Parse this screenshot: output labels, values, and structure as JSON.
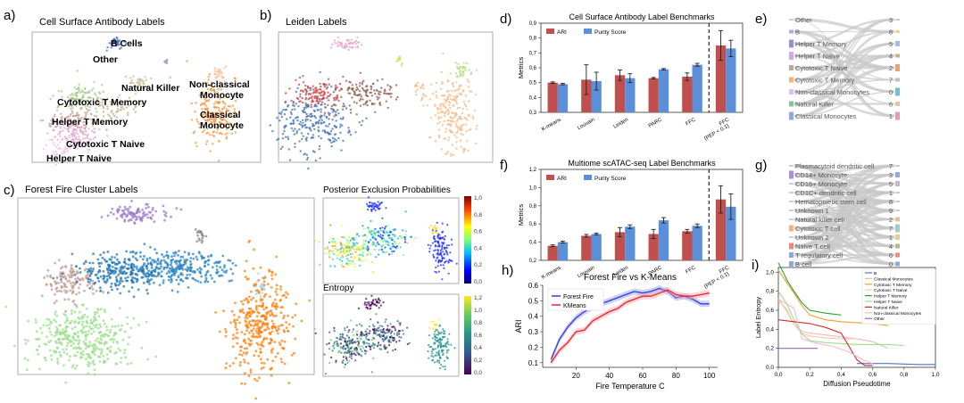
{
  "panels": {
    "a": {
      "letter": "a)",
      "title": "Cell Surface Antibody Labels",
      "labels": [
        "B Cells",
        "Other",
        "Natural Killer",
        "Non-classical\nMonocyte",
        "Cytotoxic T Memory",
        "Classical\nMonocyte",
        "Helper T Memory",
        "Cytotoxic T Naive",
        "Helper T Naive"
      ]
    },
    "b": {
      "letter": "b)",
      "title": "Leiden Labels"
    },
    "c": {
      "letter": "c)",
      "title": "Forest Fire Cluster Labels",
      "pep_title": "Posterior Exclusion Probabilities",
      "entropy_title": "Entropy",
      "pep_ticks": [
        "1,0",
        "0,8",
        "0,6",
        "0,4",
        "0,2",
        "0,0"
      ],
      "entropy_ticks": [
        "1,2",
        "1,0",
        "0,8",
        "0,6",
        "0,4",
        "0,2",
        "0,0"
      ]
    },
    "d": {
      "letter": "d)"
    },
    "e": {
      "letter": "e)",
      "left": [
        "Other",
        "B",
        "Helper T Memory",
        "Helper T Naive",
        "Cytotoxic T Naive",
        "Cytotoxic T Memory",
        "Non-classical Monocytes",
        "Natural Killer",
        "Classical Monocytes"
      ],
      "right": [
        "3",
        "8",
        "5",
        "4",
        "2",
        "7",
        "0",
        "6",
        "1"
      ]
    },
    "f": {
      "letter": "f)"
    },
    "g": {
      "letter": "g)",
      "left": [
        "Plasmacytoid dendritic cell",
        "CD14+ Monocyte",
        "CD16+ Monocyte",
        "CD1C+ dendritic cell",
        "Hematopoietic stem cell",
        "Unknown 1",
        "Natural killer cell",
        "Cytotoxic T cell",
        "Unknown 2",
        "Naive T cell",
        "T regulatory cell",
        "B cell"
      ],
      "right": [
        "7",
        "3",
        "5",
        "1",
        "8",
        "9",
        "2",
        "7",
        "1",
        "4",
        "6",
        "0"
      ]
    },
    "h": {
      "letter": "h)"
    },
    "i": {
      "letter": "i)"
    }
  },
  "chart_data": [
    {
      "id": "d",
      "type": "bar",
      "title": "Cell Surface Antibody Label Benchmarks",
      "ylabel": "Metrics",
      "ylim": [
        0.3,
        0.9
      ],
      "yticks": [
        "0,3",
        "0,4",
        "0,5",
        "0,6",
        "0,7",
        "0,8",
        "0,9"
      ],
      "categories": [
        "K-means",
        "Louvain",
        "Leiden",
        "PARC",
        "FFC",
        "FFC\n(PEP < 0.1)"
      ],
      "series": [
        {
          "name": "ARI",
          "color": "#c0504d",
          "values": [
            0.5,
            0.52,
            0.55,
            0.53,
            0.54,
            0.75
          ],
          "errors": [
            0.005,
            0.1,
            0.035,
            0.005,
            0.025,
            0.1
          ]
        },
        {
          "name": "Purity Score",
          "color": "#5b8fd9",
          "values": [
            0.49,
            0.51,
            0.53,
            0.59,
            0.62,
            0.73
          ],
          "errors": [
            0.005,
            0.06,
            0.03,
            0.005,
            0.01,
            0.055
          ]
        }
      ]
    },
    {
      "id": "f",
      "type": "bar",
      "title": "Multiome scATAC-seq Label Benchmarks",
      "ylabel": "Metrics",
      "ylim": [
        0.2,
        1.2
      ],
      "yticks": [
        "0,2",
        "0,4",
        "0,6",
        "0,8",
        "1,0",
        "1,2"
      ],
      "categories": [
        "K-means",
        "Louvain",
        "Leiden",
        "PARC",
        "FFC",
        "FFC\n(PEP < 0.1)"
      ],
      "series": [
        {
          "name": "ARI",
          "color": "#c0504d",
          "values": [
            0.36,
            0.47,
            0.51,
            0.49,
            0.52,
            0.87
          ],
          "errors": [
            0.01,
            0.015,
            0.05,
            0.05,
            0.02,
            0.15
          ]
        },
        {
          "name": "Purity Score",
          "color": "#5b8fd9",
          "values": [
            0.4,
            0.49,
            0.57,
            0.64,
            0.58,
            0.79
          ],
          "errors": [
            0.01,
            0.01,
            0.02,
            0.03,
            0.02,
            0.14
          ]
        }
      ]
    },
    {
      "id": "h",
      "type": "line",
      "title": "Forest Fire vs K-Means",
      "xlabel": "Fire Temperature C",
      "ylabel": "ARI",
      "xlim": [
        0,
        105
      ],
      "ylim": [
        0.07,
        0.6
      ],
      "xticks": [
        20,
        40,
        60,
        80,
        100
      ],
      "yticks": [
        "0.1",
        "0.2",
        "0.3",
        "0.4",
        "0.5",
        "0.6"
      ],
      "legend": "top-left",
      "series": [
        {
          "name": "Forest Fire",
          "color": "#2d3ed8",
          "x": [
            5,
            10,
            15,
            20,
            25,
            30,
            35,
            40,
            45,
            50,
            55,
            60,
            65,
            70,
            75,
            80,
            85,
            90,
            95,
            100
          ],
          "y": [
            0.12,
            0.25,
            0.33,
            0.39,
            0.43,
            0.46,
            0.48,
            0.5,
            0.52,
            0.54,
            0.56,
            0.55,
            0.56,
            0.58,
            0.56,
            0.52,
            0.53,
            0.51,
            0.48,
            0.48
          ]
        },
        {
          "name": "KMeans",
          "color": "#e8222f",
          "x": [
            5,
            10,
            15,
            20,
            25,
            30,
            35,
            40,
            45,
            50,
            55,
            60,
            65,
            70,
            75,
            80,
            85,
            90,
            95,
            100
          ],
          "y": [
            0.1,
            0.18,
            0.23,
            0.3,
            0.31,
            0.37,
            0.4,
            0.43,
            0.45,
            0.49,
            0.51,
            0.53,
            0.53,
            0.55,
            0.57,
            0.54,
            0.53,
            0.53,
            0.54,
            0.55
          ]
        }
      ]
    },
    {
      "id": "i",
      "type": "line",
      "xlabel": "Diffusion Pseudotime",
      "ylabel": "Label Entropy",
      "xlim": [
        0,
        1.0
      ],
      "ylim": [
        0,
        1.05
      ],
      "xticks": [
        "0,0",
        "0,2",
        "0,4",
        "0,6",
        "0,8",
        "1,0"
      ],
      "yticks": [
        "0,0",
        "0,2",
        "0,4",
        "0,6",
        "0,8",
        "1,0"
      ],
      "legend": "top-right",
      "series": [
        {
          "name": "B",
          "color": "#4a78c8",
          "x": [
            0.5,
            0.6,
            0.7,
            0.8,
            0.9,
            1.0
          ],
          "y": [
            0.04,
            0.04,
            0.04,
            0.035,
            0.03,
            0.03
          ]
        },
        {
          "name": "Classical Monocytes",
          "color": "#f0b9b0",
          "x": [
            0.0,
            0.05,
            0.1,
            0.15,
            0.2,
            0.3,
            0.4,
            0.5,
            0.6,
            0.7
          ],
          "y": [
            0.72,
            0.6,
            0.45,
            0.38,
            0.36,
            0.34,
            0.32,
            0.3,
            0.27,
            0.2
          ]
        },
        {
          "name": "Cytotoxic T Memory",
          "color": "#f0a030",
          "x": [
            0.0,
            0.03,
            0.07,
            0.1,
            0.15,
            0.2,
            0.3,
            0.4,
            0.5,
            0.6,
            0.7
          ],
          "y": [
            1.02,
            0.95,
            0.85,
            0.78,
            0.65,
            0.55,
            0.5,
            0.48,
            0.47,
            0.46,
            0.44
          ]
        },
        {
          "name": "Cytotoxic T Naive",
          "color": "#f5c9a0",
          "x": [
            0.0,
            0.05,
            0.1,
            0.15,
            0.2,
            0.3,
            0.4,
            0.5
          ],
          "y": [
            0.7,
            0.62,
            0.45,
            0.36,
            0.33,
            0.31,
            0.3,
            0.3
          ]
        },
        {
          "name": "Helper T Memory",
          "color": "#2ca02c",
          "x": [
            0.0,
            0.03,
            0.06,
            0.1,
            0.15,
            0.2,
            0.3,
            0.4
          ],
          "y": [
            1.1,
            1.0,
            0.9,
            0.8,
            0.68,
            0.6,
            0.57,
            0.55
          ]
        },
        {
          "name": "Helper T Naive",
          "color": "#98df8a",
          "x": [
            0.0,
            0.05,
            0.1,
            0.15,
            0.2,
            0.3,
            0.4,
            0.5,
            0.6,
            0.7,
            0.8
          ],
          "y": [
            0.8,
            0.68,
            0.5,
            0.35,
            0.28,
            0.26,
            0.25,
            0.24,
            0.24,
            0.24,
            0.23
          ]
        },
        {
          "name": "Natural Killer",
          "color": "#d62728",
          "x": [
            0.0,
            0.1,
            0.2,
            0.3,
            0.4,
            0.45,
            0.5,
            0.55,
            0.6
          ],
          "y": [
            0.5,
            0.48,
            0.46,
            0.42,
            0.36,
            0.22,
            0.08,
            0.02,
            0.02
          ]
        },
        {
          "name": "Non-classical Monocytes",
          "color": "#f7b6d2",
          "x": [
            0.0,
            0.1,
            0.15,
            0.25,
            0.35,
            0.45,
            0.55,
            0.6
          ],
          "y": [
            0.72,
            0.62,
            0.3,
            0.25,
            0.22,
            0.16,
            0.07,
            0.04
          ]
        },
        {
          "name": "Other",
          "color": "#9467bd",
          "x": [
            0.0,
            0.1,
            0.2,
            0.25
          ],
          "y": [
            0.2,
            0.2,
            0.2,
            0.2
          ]
        }
      ]
    }
  ]
}
